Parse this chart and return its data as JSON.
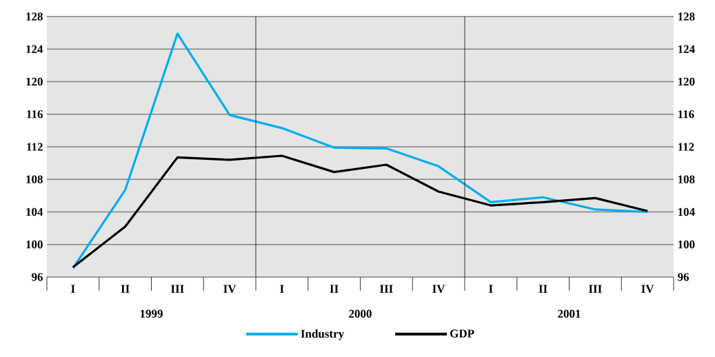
{
  "chart_data": {
    "type": "line",
    "categories": [
      "I",
      "II",
      "III",
      "IV",
      "I",
      "II",
      "III",
      "IV",
      "I",
      "II",
      "III",
      "IV"
    ],
    "annotations": [
      "1999",
      "2000",
      "2001"
    ],
    "series": [
      {
        "name": "Industry",
        "color": "#00aeef",
        "values": [
          97.1,
          106.7,
          125.9,
          115.9,
          114.3,
          111.9,
          111.8,
          109.6,
          105.2,
          105.8,
          104.3,
          104.0
        ]
      },
      {
        "name": "GDP",
        "color": "#000000",
        "values": [
          97.2,
          102.2,
          110.7,
          110.4,
          110.9,
          108.9,
          109.8,
          106.5,
          104.8,
          105.2,
          105.7,
          104.1
        ]
      }
    ],
    "ylim": [
      96,
      128
    ],
    "yticks": [
      96,
      100,
      104,
      108,
      112,
      116,
      120,
      124,
      128
    ],
    "y2lim": [
      96,
      128
    ],
    "y2ticks": [
      96,
      100,
      104,
      108,
      112,
      116,
      120,
      124,
      128
    ],
    "grid": "y",
    "legend": "bottom",
    "line_style": "solid"
  }
}
